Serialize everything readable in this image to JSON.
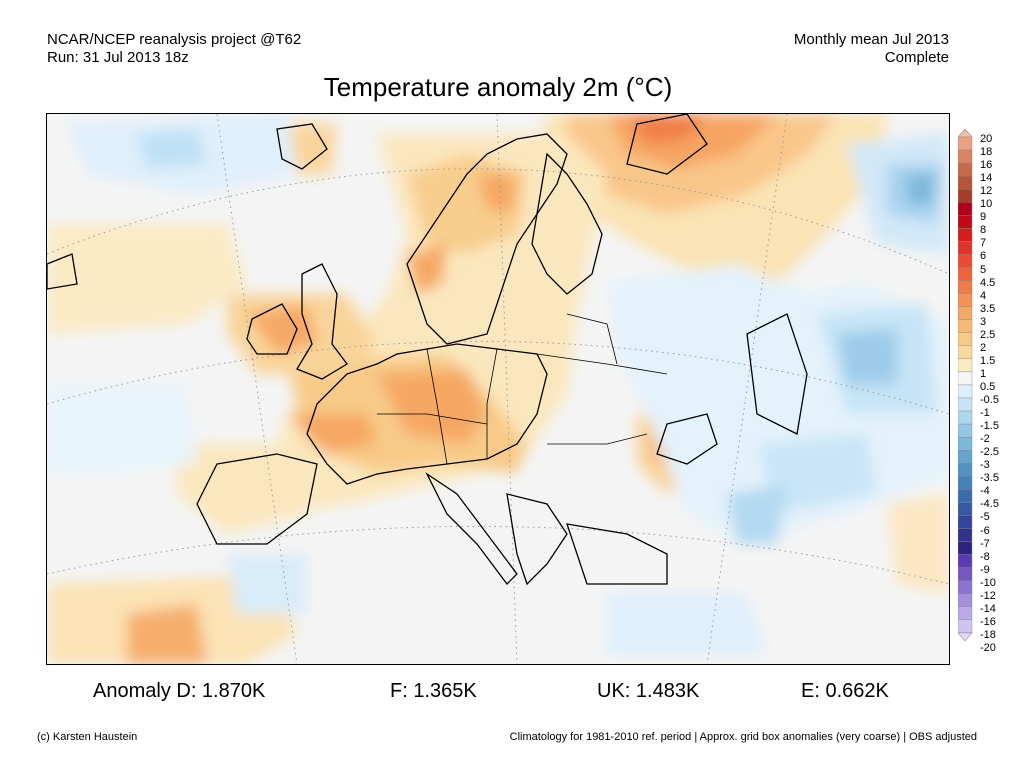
{
  "header": {
    "source": "NCAR/NCEP reanalysis project @T62",
    "run": "Run: 31 Jul 2013 18z",
    "period": "Monthly mean Jul 2013",
    "status": "Complete"
  },
  "title": "Temperature anomaly 2m (°C)",
  "legend": {
    "labels": [
      "20",
      "18",
      "16",
      "14",
      "12",
      "10",
      "9",
      "8",
      "7",
      "6",
      "5",
      "4.5",
      "4",
      "3.5",
      "3",
      "2.5",
      "2",
      "1.5",
      "1",
      "0.5",
      "-0.5",
      "-1",
      "-1.5",
      "-2",
      "-2.5",
      "-3",
      "-3.5",
      "-4",
      "-4.5",
      "-5",
      "-6",
      "-7",
      "-8",
      "-9",
      "-10",
      "-12",
      "-14",
      "-16",
      "-18",
      "-20"
    ],
    "colors": [
      "#f5c2a8",
      "#e9a284",
      "#d98463",
      "#c86a48",
      "#b65537",
      "#a43e2a",
      "#b0001c",
      "#c40616",
      "#d61d1c",
      "#e23329",
      "#eb4b32",
      "#f0643b",
      "#f27c46",
      "#f49355",
      "#f5a764",
      "#f7b976",
      "#f8ca88",
      "#f9d99c",
      "#faebc4",
      "#f5f5f5",
      "#ddeffb",
      "#c6e4f6",
      "#add6ef",
      "#95c7e5",
      "#7db7da",
      "#66a4ce",
      "#5392c3",
      "#4480b9",
      "#3a6db0",
      "#3559a6",
      "#34439b",
      "#31308f",
      "#2e2380",
      "#5b3cb0",
      "#7557c3",
      "#8e73d2",
      "#a58fde",
      "#bba9e8",
      "#d0c2f1",
      "#e2d8f8"
    ]
  },
  "stats": {
    "de": "Anomaly D: 1.870K",
    "fr": "F: 1.365K",
    "uk": "UK: 1.483K",
    "es": "E: 0.662K"
  },
  "footer": {
    "credit": "(c) Karsten Haustein",
    "note": "Climatology for 1981-2010 ref. period | Approx. grid box anomalies (very coarse) | OBS adjusted"
  }
}
